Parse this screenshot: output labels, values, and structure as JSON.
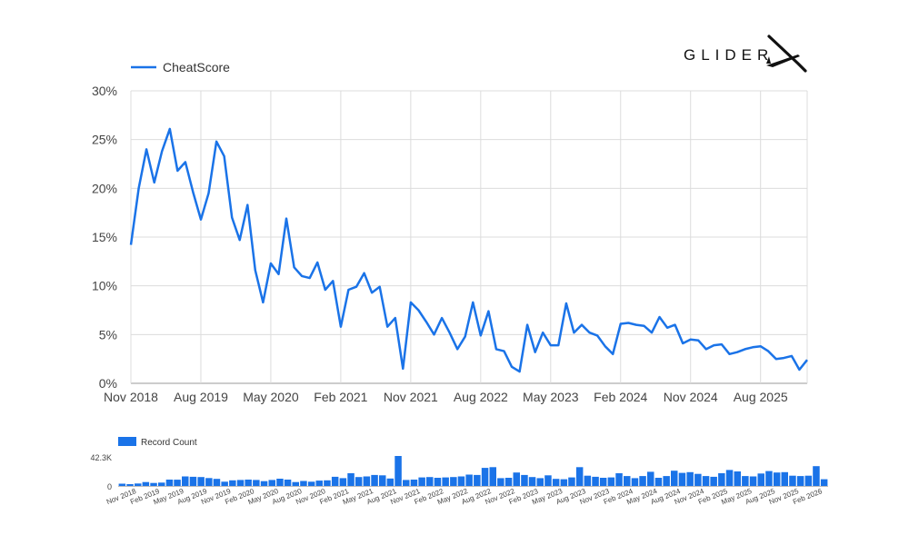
{
  "brand": {
    "name": "GLIDER"
  },
  "chart_data": [
    {
      "type": "line",
      "series": [
        {
          "name": "CheatScore",
          "color": "#1a73e8"
        }
      ],
      "x_axis_ticks": [
        "Nov 2018",
        "Aug 2019",
        "May 2020",
        "Feb 2021",
        "Nov 2021",
        "Aug 2022",
        "May 2023",
        "Feb 2024",
        "Nov 2024",
        "Aug 2025"
      ],
      "y_axis_ticks": [
        "0%",
        "5%",
        "10%",
        "15%",
        "20%",
        "25%",
        "30%"
      ],
      "ylim": [
        0,
        30
      ],
      "y_unit": "%",
      "x_start": "2018-11",
      "x_end": "2026-02",
      "legend_position": "top-left",
      "grid": true,
      "values": [
        14.2,
        20.0,
        24.0,
        20.6,
        23.8,
        26.1,
        21.8,
        22.7,
        19.6,
        16.8,
        19.5,
        24.8,
        23.3,
        17.0,
        14.7,
        18.3,
        11.6,
        8.3,
        12.3,
        11.2,
        16.9,
        11.9,
        11.0,
        10.8,
        12.4,
        9.6,
        10.5,
        5.8,
        9.6,
        9.9,
        11.3,
        9.3,
        9.9,
        5.8,
        6.7,
        1.5,
        8.3,
        7.5,
        6.3,
        5.0,
        6.7,
        5.2,
        3.5,
        4.8,
        8.3,
        4.9,
        7.4,
        3.5,
        3.3,
        1.7,
        1.2,
        6.0,
        3.2,
        5.2,
        3.9,
        3.9,
        8.2,
        5.2,
        6.0,
        5.2,
        4.9,
        3.8,
        3.0,
        6.1,
        6.2,
        6.0,
        5.9,
        5.2,
        6.8,
        5.7,
        6.0,
        4.1,
        4.5,
        4.4,
        3.5,
        3.9,
        4.0,
        3.0,
        3.2,
        3.5,
        3.7,
        3.8,
        3.3,
        2.5,
        2.6,
        2.8,
        1.4,
        2.4
      ]
    },
    {
      "type": "bar",
      "series": [
        {
          "name": "Record Count",
          "color": "#1a73e8"
        }
      ],
      "y_max_label": "42.3K",
      "y_zero_label": "0",
      "ymax": 42300,
      "legend_position": "top-left",
      "x_axis_ticks": [
        "Nov 2018",
        "Feb 2019",
        "May 2019",
        "Aug 2019",
        "Nov 2019",
        "Feb 2020",
        "May 2020",
        "Aug 2020",
        "Nov 2020",
        "Feb 2021",
        "May 2021",
        "Aug 2021",
        "Nov 2021",
        "Feb 2022",
        "May 2022",
        "Aug 2022",
        "Nov 2022",
        "Feb 2023",
        "May 2023",
        "Aug 2023",
        "Nov 2023",
        "Feb 2024",
        "May 2024",
        "Aug 2024",
        "Nov 2024",
        "Feb 2025",
        "May 2025",
        "Aug 2025",
        "Nov 2025",
        "Feb 2026"
      ],
      "values": [
        3200,
        2500,
        3500,
        5500,
        4200,
        4800,
        9000,
        8800,
        13500,
        13000,
        12500,
        11200,
        10000,
        6000,
        8000,
        8500,
        9000,
        8500,
        6800,
        8500,
        10200,
        9000,
        5500,
        7000,
        6000,
        7500,
        8000,
        13000,
        11000,
        18000,
        12500,
        13500,
        15500,
        15000,
        10500,
        42300,
        8500,
        9000,
        12000,
        12500,
        11500,
        12000,
        12500,
        13500,
        16000,
        15500,
        25500,
        26500,
        11000,
        11500,
        19000,
        15500,
        12500,
        11000,
        15000,
        10000,
        9500,
        12000,
        26500,
        14500,
        13000,
        11500,
        12000,
        18000,
        14000,
        11000,
        14000,
        20000,
        11500,
        14000,
        21500,
        18500,
        19500,
        17000,
        14000,
        13000,
        18000,
        22500,
        20500,
        14000,
        13500,
        17500,
        21000,
        19000,
        19500,
        14500,
        14000,
        14500,
        28000,
        9500
      ]
    }
  ]
}
